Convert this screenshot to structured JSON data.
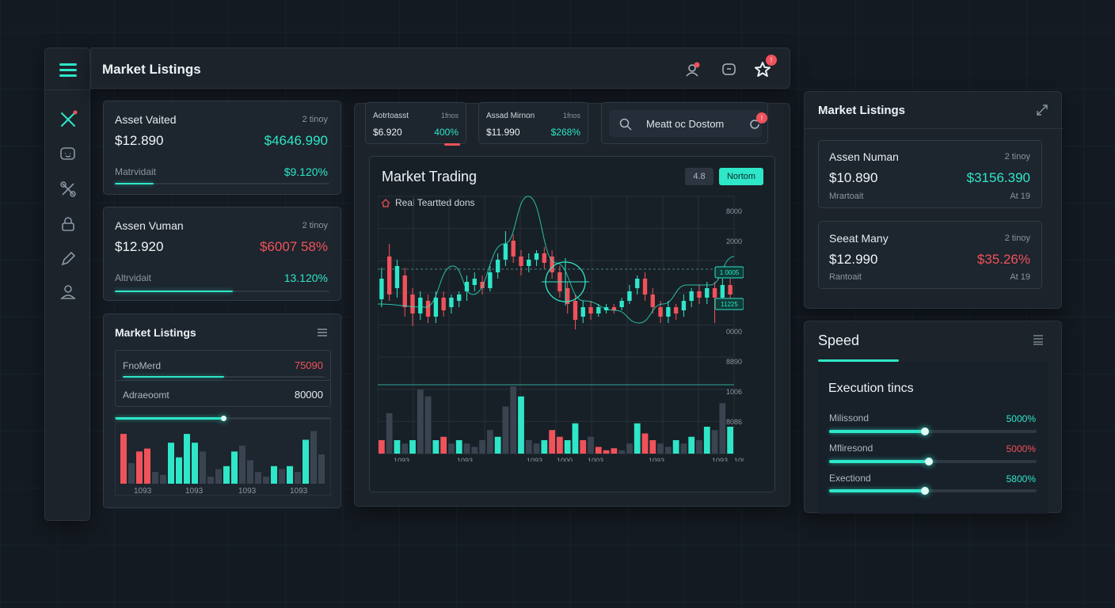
{
  "header": {
    "title": "Market Listings",
    "notif_badge": "",
    "star_badge": "!"
  },
  "sidebar": {
    "items": [
      {
        "icon": "close-x-icon"
      },
      {
        "icon": "chat-icon"
      },
      {
        "icon": "tools-icon"
      },
      {
        "icon": "lock-icon"
      },
      {
        "icon": "pencil-icon"
      },
      {
        "icon": "user-icon"
      }
    ]
  },
  "left_cards": [
    {
      "name": "Asset Vaited",
      "tag": "2 tinoy",
      "price": "$12.890",
      "value": "$4646.990",
      "label": "Matrvidait",
      "pct": "$9.120%",
      "bar": 0.18
    },
    {
      "name": "Assen Vuman",
      "tag": "2 tinoy",
      "price": "$12.920",
      "value": "$6007 58%",
      "label": "Altrvidait",
      "pct": "13.120%",
      "bar": 0.55
    }
  ],
  "left_listings": {
    "title": "Market Listings",
    "rows": [
      {
        "label": "FnoMerd",
        "value": "75090",
        "bar": 0.5
      },
      {
        "label": "Adraeoomt",
        "value": "80000",
        "bar": 0.0
      }
    ],
    "slider": 0.5,
    "x_ticks": [
      "1093",
      "1093",
      "1093",
      "1093"
    ],
    "bars": [
      {
        "v": 0.85,
        "c": "red"
      },
      {
        "v": 0.35,
        "c": "dim"
      },
      {
        "v": 0.55,
        "c": "red"
      },
      {
        "v": 0.6,
        "c": "red"
      },
      {
        "v": 0.2,
        "c": "dim"
      },
      {
        "v": 0.15,
        "c": "dim"
      },
      {
        "v": 0.7,
        "c": "teal"
      },
      {
        "v": 0.45,
        "c": "teal"
      },
      {
        "v": 0.85,
        "c": "teal"
      },
      {
        "v": 0.7,
        "c": "teal"
      },
      {
        "v": 0.55,
        "c": "dim"
      },
      {
        "v": 0.12,
        "c": "dim"
      },
      {
        "v": 0.25,
        "c": "dim"
      },
      {
        "v": 0.3,
        "c": "teal"
      },
      {
        "v": 0.55,
        "c": "teal"
      },
      {
        "v": 0.65,
        "c": "dim"
      },
      {
        "v": 0.4,
        "c": "dim"
      },
      {
        "v": 0.2,
        "c": "dim"
      },
      {
        "v": 0.12,
        "c": "dim"
      },
      {
        "v": 0.3,
        "c": "teal"
      },
      {
        "v": 0.25,
        "c": "dim"
      },
      {
        "v": 0.3,
        "c": "teal"
      },
      {
        "v": 0.2,
        "c": "dim"
      },
      {
        "v": 0.75,
        "c": "teal"
      },
      {
        "v": 0.9,
        "c": "dim"
      },
      {
        "v": 0.5,
        "c": "dim"
      }
    ]
  },
  "mini_tickers": [
    {
      "name": "Aotrtoasst",
      "tag": "1fnos",
      "price": "$6.920",
      "pct": "400%"
    },
    {
      "name": "Assad Mirnon",
      "tag": "1fnos",
      "price": "$11.990",
      "pct": "$268%"
    }
  ],
  "search": {
    "placeholder": "Meatt oc Dostom",
    "badge": "!"
  },
  "trading": {
    "title": "Market Trading",
    "subtitle": "Real Teartted dons",
    "chip1": "4.8",
    "chip2": "Nortom",
    "price_labels": [
      "8000",
      "2000",
      "1000",
      "1000",
      "0000",
      "8890",
      "1006",
      "8086"
    ],
    "price_tags": [
      "1 0005",
      "11225"
    ],
    "x_ticks": [
      "1093",
      "1093",
      "1093",
      "1000",
      "1003",
      "1093",
      "1093",
      "1093"
    ]
  },
  "chart_data": {
    "type": "candlestick",
    "title": "Market Trading",
    "candles": [
      {
        "o": 0.35,
        "c": 0.48,
        "h": 0.55,
        "l": 0.3,
        "up": true
      },
      {
        "o": 0.62,
        "c": 0.38,
        "h": 0.7,
        "l": 0.34,
        "up": false
      },
      {
        "o": 0.42,
        "c": 0.56,
        "h": 0.6,
        "l": 0.36,
        "up": true
      },
      {
        "o": 0.5,
        "c": 0.3,
        "h": 0.55,
        "l": 0.24,
        "up": false
      },
      {
        "o": 0.38,
        "c": 0.26,
        "h": 0.42,
        "l": 0.18,
        "up": false
      },
      {
        "o": 0.26,
        "c": 0.36,
        "h": 0.4,
        "l": 0.22,
        "up": true
      },
      {
        "o": 0.34,
        "c": 0.24,
        "h": 0.38,
        "l": 0.2,
        "up": false
      },
      {
        "o": 0.24,
        "c": 0.36,
        "h": 0.4,
        "l": 0.2,
        "up": true
      },
      {
        "o": 0.36,
        "c": 0.28,
        "h": 0.4,
        "l": 0.24,
        "up": false
      },
      {
        "o": 0.3,
        "c": 0.36,
        "h": 0.38,
        "l": 0.26,
        "up": true
      },
      {
        "o": 0.34,
        "c": 0.38,
        "h": 0.4,
        "l": 0.3,
        "up": true
      },
      {
        "o": 0.4,
        "c": 0.46,
        "h": 0.5,
        "l": 0.34,
        "up": true
      },
      {
        "o": 0.44,
        "c": 0.48,
        "h": 0.52,
        "l": 0.4,
        "up": true
      },
      {
        "o": 0.46,
        "c": 0.42,
        "h": 0.5,
        "l": 0.38,
        "up": false
      },
      {
        "o": 0.42,
        "c": 0.52,
        "h": 0.56,
        "l": 0.4,
        "up": true
      },
      {
        "o": 0.52,
        "c": 0.6,
        "h": 0.64,
        "l": 0.48,
        "up": true
      },
      {
        "o": 0.6,
        "c": 0.7,
        "h": 0.78,
        "l": 0.56,
        "up": true
      },
      {
        "o": 0.72,
        "c": 0.62,
        "h": 0.76,
        "l": 0.58,
        "up": false
      },
      {
        "o": 0.62,
        "c": 0.56,
        "h": 0.66,
        "l": 0.5,
        "up": false
      },
      {
        "o": 0.56,
        "c": 0.6,
        "h": 0.64,
        "l": 0.52,
        "up": true
      },
      {
        "o": 0.6,
        "c": 0.64,
        "h": 0.66,
        "l": 0.56,
        "up": true
      },
      {
        "o": 0.64,
        "c": 0.58,
        "h": 0.68,
        "l": 0.54,
        "up": false
      },
      {
        "o": 0.62,
        "c": 0.52,
        "h": 0.66,
        "l": 0.48,
        "up": false
      },
      {
        "o": 0.52,
        "c": 0.4,
        "h": 0.56,
        "l": 0.36,
        "up": false
      },
      {
        "o": 0.42,
        "c": 0.32,
        "h": 0.46,
        "l": 0.26,
        "up": false
      },
      {
        "o": 0.34,
        "c": 0.22,
        "h": 0.38,
        "l": 0.16,
        "up": false
      },
      {
        "o": 0.24,
        "c": 0.3,
        "h": 0.34,
        "l": 0.2,
        "up": true
      },
      {
        "o": 0.3,
        "c": 0.26,
        "h": 0.34,
        "l": 0.22,
        "up": false
      },
      {
        "o": 0.26,
        "c": 0.3,
        "h": 0.32,
        "l": 0.24,
        "up": true
      },
      {
        "o": 0.28,
        "c": 0.3,
        "h": 0.32,
        "l": 0.26,
        "up": true
      },
      {
        "o": 0.3,
        "c": 0.28,
        "h": 0.32,
        "l": 0.26,
        "up": false
      },
      {
        "o": 0.3,
        "c": 0.34,
        "h": 0.36,
        "l": 0.28,
        "up": true
      },
      {
        "o": 0.34,
        "c": 0.4,
        "h": 0.44,
        "l": 0.32,
        "up": true
      },
      {
        "o": 0.42,
        "c": 0.48,
        "h": 0.5,
        "l": 0.38,
        "up": true
      },
      {
        "o": 0.48,
        "c": 0.38,
        "h": 0.52,
        "l": 0.34,
        "up": false
      },
      {
        "o": 0.38,
        "c": 0.3,
        "h": 0.42,
        "l": 0.26,
        "up": false
      },
      {
        "o": 0.3,
        "c": 0.24,
        "h": 0.34,
        "l": 0.2,
        "up": false
      },
      {
        "o": 0.24,
        "c": 0.3,
        "h": 0.34,
        "l": 0.2,
        "up": true
      },
      {
        "o": 0.3,
        "c": 0.26,
        "h": 0.32,
        "l": 0.22,
        "up": false
      },
      {
        "o": 0.28,
        "c": 0.34,
        "h": 0.38,
        "l": 0.24,
        "up": true
      },
      {
        "o": 0.34,
        "c": 0.4,
        "h": 0.42,
        "l": 0.3,
        "up": true
      },
      {
        "o": 0.4,
        "c": 0.36,
        "h": 0.44,
        "l": 0.32,
        "up": false
      },
      {
        "o": 0.36,
        "c": 0.42,
        "h": 0.46,
        "l": 0.32,
        "up": true
      },
      {
        "o": 0.42,
        "c": 0.36,
        "h": 0.46,
        "l": 0.2,
        "up": false
      },
      {
        "o": 0.36,
        "c": 0.44,
        "h": 0.48,
        "l": 0.32,
        "up": true
      },
      {
        "o": 0.44,
        "c": 0.38,
        "h": 0.48,
        "l": 0.34,
        "up": false
      }
    ],
    "volume": [
      {
        "v": 0.2,
        "c": "red"
      },
      {
        "v": 0.6,
        "c": "dim"
      },
      {
        "v": 0.2,
        "c": "teal"
      },
      {
        "v": 0.15,
        "c": "dim"
      },
      {
        "v": 0.2,
        "c": "teal"
      },
      {
        "v": 0.95,
        "c": "dim"
      },
      {
        "v": 0.85,
        "c": "dim"
      },
      {
        "v": 0.2,
        "c": "teal"
      },
      {
        "v": 0.25,
        "c": "red"
      },
      {
        "v": 0.15,
        "c": "dim"
      },
      {
        "v": 0.2,
        "c": "teal"
      },
      {
        "v": 0.15,
        "c": "dim"
      },
      {
        "v": 0.1,
        "c": "dim"
      },
      {
        "v": 0.2,
        "c": "dim"
      },
      {
        "v": 0.35,
        "c": "dim"
      },
      {
        "v": 0.25,
        "c": "teal"
      },
      {
        "v": 0.7,
        "c": "dim"
      },
      {
        "v": 1.0,
        "c": "dim"
      },
      {
        "v": 0.85,
        "c": "teal"
      },
      {
        "v": 0.2,
        "c": "dim"
      },
      {
        "v": 0.15,
        "c": "dim"
      },
      {
        "v": 0.2,
        "c": "teal"
      },
      {
        "v": 0.35,
        "c": "red"
      },
      {
        "v": 0.25,
        "c": "red"
      },
      {
        "v": 0.2,
        "c": "teal"
      },
      {
        "v": 0.45,
        "c": "teal"
      },
      {
        "v": 0.2,
        "c": "red"
      },
      {
        "v": 0.25,
        "c": "dim"
      },
      {
        "v": 0.1,
        "c": "red"
      },
      {
        "v": 0.05,
        "c": "red"
      },
      {
        "v": 0.08,
        "c": "red"
      },
      {
        "v": 0.05,
        "c": "dim"
      },
      {
        "v": 0.15,
        "c": "dim"
      },
      {
        "v": 0.45,
        "c": "teal"
      },
      {
        "v": 0.3,
        "c": "red"
      },
      {
        "v": 0.2,
        "c": "red"
      },
      {
        "v": 0.15,
        "c": "dim"
      },
      {
        "v": 0.1,
        "c": "dim"
      },
      {
        "v": 0.2,
        "c": "teal"
      },
      {
        "v": 0.15,
        "c": "dim"
      },
      {
        "v": 0.25,
        "c": "teal"
      },
      {
        "v": 0.2,
        "c": "dim"
      },
      {
        "v": 0.4,
        "c": "teal"
      },
      {
        "v": 0.35,
        "c": "dim"
      },
      {
        "v": 0.75,
        "c": "dim"
      },
      {
        "v": 0.4,
        "c": "teal"
      }
    ]
  },
  "right_listings": {
    "title": "Market Listings",
    "cards": [
      {
        "name": "Assen Numan",
        "tag": "2 tinoy",
        "price": "$10.890",
        "value": "$3156.390",
        "label": "Mrartoait",
        "small": "At 19"
      },
      {
        "name": "Seeat Many",
        "tag": "2 tinoy",
        "price": "$12.990",
        "value": "$35.26%",
        "label": "Rantoait",
        "small": "At 19"
      }
    ]
  },
  "speed": {
    "title": "Speed",
    "subtitle": "Execution tincs",
    "rows": [
      {
        "label": "Milissond",
        "value": "5000%",
        "level": 0.46,
        "color": "teal"
      },
      {
        "label": "Mfliresond",
        "value": "5000%",
        "level": 0.48,
        "color": "red"
      },
      {
        "label": "Exectiond",
        "value": "5800%",
        "level": 0.46,
        "color": "teal"
      }
    ]
  },
  "colors": {
    "accent": "#2ee6c8",
    "negative": "#f0525a",
    "panel": "#1c232b"
  }
}
